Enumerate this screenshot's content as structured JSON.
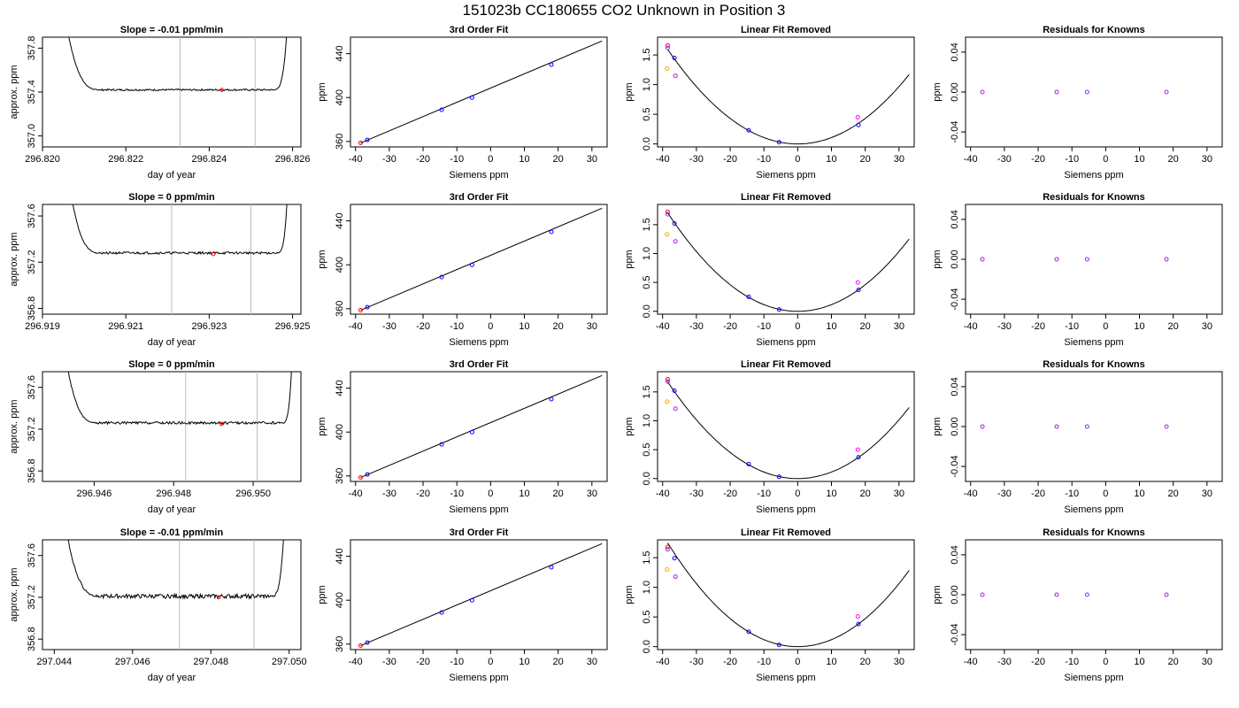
{
  "page": {
    "title": "151023b     CC180655   CO2 Unknown in Position  3"
  },
  "colors": {
    "axis": "#000000",
    "trace": "#000000",
    "vline": "#bbbbbb",
    "fit": "#000000",
    "blue": "#0000ff",
    "purple": "#a020f0",
    "orange": "#ffa500",
    "red": "#ff0000",
    "magenta": "#ff00ff"
  },
  "chart_data": [
    {
      "id": "r1-trace",
      "type": "line",
      "title": "Slope =  -0.01  ppm/min",
      "xlabel": "day of year",
      "ylabel": "approx. ppm",
      "xlim": [
        296.82,
        296.8262
      ],
      "ylim": [
        356.9,
        357.9
      ],
      "xticks": [
        "296.820",
        "296.822",
        "296.824",
        "296.826"
      ],
      "xtick_values": [
        296.82,
        296.822,
        296.824,
        296.826
      ],
      "yticks": [
        "357.0",
        "357.4",
        "357.8"
      ],
      "ytick_values": [
        357.0,
        357.4,
        357.8
      ],
      "vlines": [
        296.8233,
        296.8251
      ],
      "left_rise": [
        296.8205,
        296.8214
      ],
      "right_rise": [
        296.8255,
        296.8259
      ],
      "baseline": 357.42,
      "noise": 0.008,
      "marker": {
        "x": 296.8243,
        "y": 357.42
      },
      "rise_top": 358.2
    },
    {
      "id": "r1-fit",
      "type": "line",
      "title": "3rd Order Fit",
      "xlabel": "Siemens ppm",
      "ylabel": "ppm",
      "xlim": [
        -41.5,
        34.5
      ],
      "ylim": [
        355,
        455
      ],
      "xticks": [
        "-40",
        "-30",
        "-20",
        "-10",
        "0",
        "10",
        "20",
        "30"
      ],
      "xtick_values": [
        -40,
        -30,
        -20,
        -10,
        0,
        10,
        20,
        30
      ],
      "yticks": [
        "360",
        "400",
        "440"
      ],
      "ytick_values": [
        360,
        400,
        440
      ],
      "line": {
        "x": [
          -38.5,
          33
        ],
        "y": [
          358.6,
          451.5
        ]
      },
      "points": [
        {
          "x": -38.5,
          "y": 358.6,
          "c": "red"
        },
        {
          "x": -36.5,
          "y": 361.4,
          "c": "blue"
        },
        {
          "x": -14.5,
          "y": 388.8,
          "c": "blue"
        },
        {
          "x": -5.5,
          "y": 400,
          "c": "blue"
        },
        {
          "x": 18,
          "y": 430,
          "c": "blue"
        }
      ]
    },
    {
      "id": "r1-lin",
      "type": "line",
      "title": "Linear Fit Removed",
      "xlabel": "Siemens ppm",
      "ylabel": "ppm",
      "xlim": [
        -41.5,
        34.5
      ],
      "ylim": [
        -0.05,
        1.8
      ],
      "xticks": [
        "-40",
        "-30",
        "-20",
        "-10",
        "0",
        "10",
        "20",
        "30"
      ],
      "xtick_values": [
        -40,
        -30,
        -20,
        -10,
        0,
        10,
        20,
        30
      ],
      "yticks": [
        "0.0",
        "0.5",
        "1.0",
        "1.5"
      ],
      "ytick_values": [
        0,
        0.5,
        1.0,
        1.5
      ],
      "curve": {
        "a": 0.001075,
        "b": 0.0,
        "c": 0.0
      },
      "points": [
        {
          "x": -38.5,
          "y": 1.66,
          "c": "red"
        },
        {
          "x": -38.5,
          "y": 1.62,
          "c": "purple"
        },
        {
          "x": -38.7,
          "y": 1.27,
          "c": "orange"
        },
        {
          "x": -36.5,
          "y": 1.45,
          "c": "blue"
        },
        {
          "x": -36.2,
          "y": 1.15,
          "c": "purple"
        },
        {
          "x": -14.5,
          "y": 0.23,
          "c": "blue"
        },
        {
          "x": -5.5,
          "y": 0.03,
          "c": "blue"
        },
        {
          "x": 18,
          "y": 0.32,
          "c": "blue"
        },
        {
          "x": 17.8,
          "y": 0.45,
          "c": "magenta"
        }
      ]
    },
    {
      "id": "r1-res",
      "type": "scatter",
      "title": "Residuals for Knowns",
      "xlabel": "Siemens ppm",
      "ylabel": "ppm",
      "xlim": [
        -41.5,
        34.5
      ],
      "ylim": [
        -0.055,
        0.055
      ],
      "xticks": [
        "-40",
        "-30",
        "-20",
        "-10",
        "0",
        "10",
        "20",
        "30"
      ],
      "xtick_values": [
        -40,
        -30,
        -20,
        -10,
        0,
        10,
        20,
        30
      ],
      "yticks": [
        "-0.04",
        "0.00",
        "0.04"
      ],
      "ytick_values": [
        -0.04,
        0,
        0.04
      ],
      "points": [
        {
          "x": -36.5,
          "y": 0,
          "c": "purple"
        },
        {
          "x": -14.5,
          "y": 0,
          "c": "purple"
        },
        {
          "x": -5.5,
          "y": 0,
          "c": "purple"
        },
        {
          "x": 18,
          "y": 0,
          "c": "purple"
        }
      ]
    },
    {
      "id": "r2-trace",
      "type": "line",
      "title": "Slope =  0  ppm/min",
      "xlabel": "day of year",
      "ylabel": "approx. ppm",
      "xlim": [
        296.919,
        296.9252
      ],
      "ylim": [
        356.75,
        357.7
      ],
      "xticks": [
        "296.919",
        "296.921",
        "296.923",
        "296.925"
      ],
      "xtick_values": [
        296.919,
        296.921,
        296.923,
        296.925
      ],
      "yticks": [
        "356.8",
        "357.2",
        "357.6"
      ],
      "ytick_values": [
        356.8,
        357.2,
        357.6
      ],
      "vlines": [
        296.9221,
        296.924
      ],
      "left_rise": [
        296.9196,
        296.9204
      ],
      "right_rise": [
        296.9246,
        296.9249
      ],
      "baseline": 357.28,
      "noise": 0.01,
      "marker": {
        "x": 296.9231,
        "y": 357.27
      },
      "rise_top": 358.0
    },
    {
      "id": "r2-fit",
      "type": "line",
      "title": "3rd Order Fit",
      "xlabel": "Siemens ppm",
      "ylabel": "ppm",
      "xlim": [
        -41.5,
        34.5
      ],
      "ylim": [
        355,
        455
      ],
      "xticks": [
        "-40",
        "-30",
        "-20",
        "-10",
        "0",
        "10",
        "20",
        "30"
      ],
      "xtick_values": [
        -40,
        -30,
        -20,
        -10,
        0,
        10,
        20,
        30
      ],
      "yticks": [
        "360",
        "400",
        "440"
      ],
      "ytick_values": [
        360,
        400,
        440
      ],
      "line": {
        "x": [
          -38.5,
          33
        ],
        "y": [
          358.6,
          451.5
        ]
      },
      "points": [
        {
          "x": -38.5,
          "y": 358.6,
          "c": "red"
        },
        {
          "x": -36.5,
          "y": 361.4,
          "c": "blue"
        },
        {
          "x": -14.5,
          "y": 388.8,
          "c": "blue"
        },
        {
          "x": -5.5,
          "y": 400,
          "c": "blue"
        },
        {
          "x": 18,
          "y": 430,
          "c": "blue"
        }
      ]
    },
    {
      "id": "r2-lin",
      "type": "line",
      "title": "Linear Fit Removed",
      "xlabel": "Siemens ppm",
      "ylabel": "ppm",
      "xlim": [
        -41.5,
        34.5
      ],
      "ylim": [
        -0.05,
        1.85
      ],
      "xticks": [
        "-40",
        "-30",
        "-20",
        "-10",
        "0",
        "10",
        "20",
        "30"
      ],
      "xtick_values": [
        -40,
        -30,
        -20,
        -10,
        0,
        10,
        20,
        30
      ],
      "yticks": [
        "0.0",
        "0.5",
        "1.0",
        "1.5"
      ],
      "ytick_values": [
        0,
        0.5,
        1.0,
        1.5
      ],
      "curve": {
        "a": 0.00115,
        "b": 0.0,
        "c": 0.0
      },
      "points": [
        {
          "x": -38.5,
          "y": 1.72,
          "c": "red"
        },
        {
          "x": -38.5,
          "y": 1.68,
          "c": "purple"
        },
        {
          "x": -38.7,
          "y": 1.33,
          "c": "orange"
        },
        {
          "x": -36.5,
          "y": 1.52,
          "c": "blue"
        },
        {
          "x": -36.2,
          "y": 1.21,
          "c": "purple"
        },
        {
          "x": -14.5,
          "y": 0.25,
          "c": "blue"
        },
        {
          "x": -5.5,
          "y": 0.03,
          "c": "blue"
        },
        {
          "x": 18,
          "y": 0.37,
          "c": "blue"
        },
        {
          "x": 17.8,
          "y": 0.5,
          "c": "magenta"
        }
      ]
    },
    {
      "id": "r2-res",
      "type": "scatter",
      "title": "Residuals for Knowns",
      "xlabel": "Siemens ppm",
      "ylabel": "ppm",
      "xlim": [
        -41.5,
        34.5
      ],
      "ylim": [
        -0.055,
        0.055
      ],
      "xticks": [
        "-40",
        "-30",
        "-20",
        "-10",
        "0",
        "10",
        "20",
        "30"
      ],
      "xtick_values": [
        -40,
        -30,
        -20,
        -10,
        0,
        10,
        20,
        30
      ],
      "yticks": [
        "-0.04",
        "0.00",
        "0.04"
      ],
      "ytick_values": [
        -0.04,
        0,
        0.04
      ],
      "points": [
        {
          "x": -36.5,
          "y": 0,
          "c": "purple"
        },
        {
          "x": -14.5,
          "y": 0,
          "c": "purple"
        },
        {
          "x": -5.5,
          "y": 0,
          "c": "purple"
        },
        {
          "x": 18,
          "y": 0,
          "c": "purple"
        }
      ]
    },
    {
      "id": "r3-trace",
      "type": "line",
      "title": "Slope =  0  ppm/min",
      "xlabel": "day of year",
      "ylabel": "approx. ppm",
      "xlim": [
        296.9447,
        296.9512
      ],
      "ylim": [
        356.7,
        357.75
      ],
      "xticks": [
        "296.946",
        "296.948",
        "296.950"
      ],
      "xtick_values": [
        296.946,
        296.948,
        296.95
      ],
      "yticks": [
        "356.8",
        "357.2",
        "357.6"
      ],
      "ytick_values": [
        356.8,
        357.2,
        357.6
      ],
      "vlines": [
        296.9483,
        296.9501
      ],
      "left_rise": [
        296.9452,
        296.9461
      ],
      "right_rise": [
        296.9507,
        296.951
      ],
      "baseline": 357.26,
      "noise": 0.012,
      "marker": {
        "x": 296.9492,
        "y": 357.25
      },
      "rise_top": 358.1
    },
    {
      "id": "r3-fit",
      "type": "line",
      "title": "3rd Order Fit",
      "xlabel": "Siemens ppm",
      "ylabel": "ppm",
      "xlim": [
        -41.5,
        34.5
      ],
      "ylim": [
        355,
        455
      ],
      "xticks": [
        "-40",
        "-30",
        "-20",
        "-10",
        "0",
        "10",
        "20",
        "30"
      ],
      "xtick_values": [
        -40,
        -30,
        -20,
        -10,
        0,
        10,
        20,
        30
      ],
      "yticks": [
        "360",
        "400",
        "440"
      ],
      "ytick_values": [
        360,
        400,
        440
      ],
      "line": {
        "x": [
          -38.5,
          33
        ],
        "y": [
          358.6,
          451.5
        ]
      },
      "points": [
        {
          "x": -38.5,
          "y": 358.6,
          "c": "red"
        },
        {
          "x": -36.5,
          "y": 361.4,
          "c": "blue"
        },
        {
          "x": -14.5,
          "y": 388.8,
          "c": "blue"
        },
        {
          "x": -5.5,
          "y": 400,
          "c": "blue"
        },
        {
          "x": 18,
          "y": 430,
          "c": "blue"
        }
      ]
    },
    {
      "id": "r3-lin",
      "type": "line",
      "title": "Linear Fit Removed",
      "xlabel": "Siemens ppm",
      "ylabel": "ppm",
      "xlim": [
        -41.5,
        34.5
      ],
      "ylim": [
        -0.05,
        1.85
      ],
      "xticks": [
        "-40",
        "-30",
        "-20",
        "-10",
        "0",
        "10",
        "20",
        "30"
      ],
      "xtick_values": [
        -40,
        -30,
        -20,
        -10,
        0,
        10,
        20,
        30
      ],
      "yticks": [
        "0.0",
        "0.5",
        "1.0",
        "1.5"
      ],
      "ytick_values": [
        0,
        0.5,
        1.0,
        1.5
      ],
      "curve": {
        "a": 0.00113,
        "b": 0.0,
        "c": 0.0
      },
      "points": [
        {
          "x": -38.5,
          "y": 1.72,
          "c": "red"
        },
        {
          "x": -38.5,
          "y": 1.68,
          "c": "purple"
        },
        {
          "x": -38.7,
          "y": 1.33,
          "c": "orange"
        },
        {
          "x": -36.5,
          "y": 1.52,
          "c": "blue"
        },
        {
          "x": -36.2,
          "y": 1.21,
          "c": "purple"
        },
        {
          "x": -14.5,
          "y": 0.25,
          "c": "blue"
        },
        {
          "x": -5.5,
          "y": 0.03,
          "c": "blue"
        },
        {
          "x": 18,
          "y": 0.37,
          "c": "blue"
        },
        {
          "x": 17.8,
          "y": 0.5,
          "c": "magenta"
        }
      ]
    },
    {
      "id": "r3-res",
      "type": "scatter",
      "title": "Residuals for Knowns",
      "xlabel": "Siemens ppm",
      "ylabel": "ppm",
      "xlim": [
        -41.5,
        34.5
      ],
      "ylim": [
        -0.055,
        0.055
      ],
      "xticks": [
        "-40",
        "-30",
        "-20",
        "-10",
        "0",
        "10",
        "20",
        "30"
      ],
      "xtick_values": [
        -40,
        -30,
        -20,
        -10,
        0,
        10,
        20,
        30
      ],
      "yticks": [
        "-0.04",
        "0.00",
        "0.04"
      ],
      "ytick_values": [
        -0.04,
        0,
        0.04
      ],
      "points": [
        {
          "x": -36.5,
          "y": 0,
          "c": "purple"
        },
        {
          "x": -14.5,
          "y": 0,
          "c": "purple"
        },
        {
          "x": -5.5,
          "y": 0,
          "c": "purple"
        },
        {
          "x": 18,
          "y": 0,
          "c": "purple"
        }
      ]
    },
    {
      "id": "r4-trace",
      "type": "line",
      "title": "Slope =  -0.01  ppm/min",
      "xlabel": "day of year",
      "ylabel": "approx. ppm",
      "xlim": [
        297.0437,
        297.0503
      ],
      "ylim": [
        356.7,
        357.75
      ],
      "xticks": [
        "297.044",
        "297.046",
        "297.048",
        "297.050"
      ],
      "xtick_values": [
        297.044,
        297.046,
        297.048,
        297.05
      ],
      "yticks": [
        "356.8",
        "357.2",
        "357.6"
      ],
      "ytick_values": [
        356.8,
        357.2,
        357.6
      ],
      "vlines": [
        297.0472,
        297.0491
      ],
      "left_rise": [
        297.0442,
        297.0452
      ],
      "right_rise": [
        297.0495,
        297.0499
      ],
      "baseline": 357.21,
      "noise": 0.02,
      "marker": {
        "x": 297.0482,
        "y": 357.2
      },
      "rise_top": 358.1
    },
    {
      "id": "r4-fit",
      "type": "line",
      "title": "3rd Order Fit",
      "xlabel": "Siemens ppm",
      "ylabel": "ppm",
      "xlim": [
        -41.5,
        34.5
      ],
      "ylim": [
        355,
        455
      ],
      "xticks": [
        "-40",
        "-30",
        "-20",
        "-10",
        "0",
        "10",
        "20",
        "30"
      ],
      "xtick_values": [
        -40,
        -30,
        -20,
        -10,
        0,
        10,
        20,
        30
      ],
      "yticks": [
        "360",
        "400",
        "440"
      ],
      "ytick_values": [
        360,
        400,
        440
      ],
      "line": {
        "x": [
          -38.5,
          33
        ],
        "y": [
          358.6,
          451.5
        ]
      },
      "points": [
        {
          "x": -38.5,
          "y": 358.6,
          "c": "red"
        },
        {
          "x": -36.5,
          "y": 361.4,
          "c": "blue"
        },
        {
          "x": -14.5,
          "y": 388.8,
          "c": "blue"
        },
        {
          "x": -5.5,
          "y": 400,
          "c": "blue"
        },
        {
          "x": 18,
          "y": 430,
          "c": "blue"
        }
      ]
    },
    {
      "id": "r4-lin",
      "type": "line",
      "title": "Linear Fit Removed",
      "xlabel": "Siemens ppm",
      "ylabel": "ppm",
      "xlim": [
        -41.5,
        34.5
      ],
      "ylim": [
        -0.05,
        1.8
      ],
      "xticks": [
        "-40",
        "-30",
        "-20",
        "-10",
        "0",
        "10",
        "20",
        "30"
      ],
      "xtick_values": [
        -40,
        -30,
        -20,
        -10,
        0,
        10,
        20,
        30
      ],
      "yticks": [
        "0.0",
        "0.5",
        "1.0",
        "1.5"
      ],
      "ytick_values": [
        0,
        0.5,
        1.0,
        1.5
      ],
      "curve": {
        "a": 0.00118,
        "b": 0.0,
        "c": 0.0
      },
      "points": [
        {
          "x": -38.5,
          "y": 1.68,
          "c": "red"
        },
        {
          "x": -38.5,
          "y": 1.64,
          "c": "purple"
        },
        {
          "x": -38.7,
          "y": 1.3,
          "c": "orange"
        },
        {
          "x": -36.5,
          "y": 1.49,
          "c": "blue"
        },
        {
          "x": -36.2,
          "y": 1.18,
          "c": "purple"
        },
        {
          "x": -14.5,
          "y": 0.25,
          "c": "blue"
        },
        {
          "x": -5.5,
          "y": 0.03,
          "c": "blue"
        },
        {
          "x": 18,
          "y": 0.38,
          "c": "blue"
        },
        {
          "x": 17.8,
          "y": 0.51,
          "c": "magenta"
        }
      ]
    },
    {
      "id": "r4-res",
      "type": "scatter",
      "title": "Residuals for Knowns",
      "xlabel": "Siemens ppm",
      "ylabel": "ppm",
      "xlim": [
        -41.5,
        34.5
      ],
      "ylim": [
        -0.055,
        0.055
      ],
      "xticks": [
        "-40",
        "-30",
        "-20",
        "-10",
        "0",
        "10",
        "20",
        "30"
      ],
      "xtick_values": [
        -40,
        -30,
        -20,
        -10,
        0,
        10,
        20,
        30
      ],
      "yticks": [
        "-0.04",
        "0.00",
        "0.04"
      ],
      "ytick_values": [
        -0.04,
        0,
        0.04
      ],
      "points": [
        {
          "x": -36.5,
          "y": 0,
          "c": "purple"
        },
        {
          "x": -14.5,
          "y": 0,
          "c": "purple"
        },
        {
          "x": -5.5,
          "y": 0,
          "c": "purple"
        },
        {
          "x": 18,
          "y": 0,
          "c": "purple"
        }
      ]
    }
  ]
}
